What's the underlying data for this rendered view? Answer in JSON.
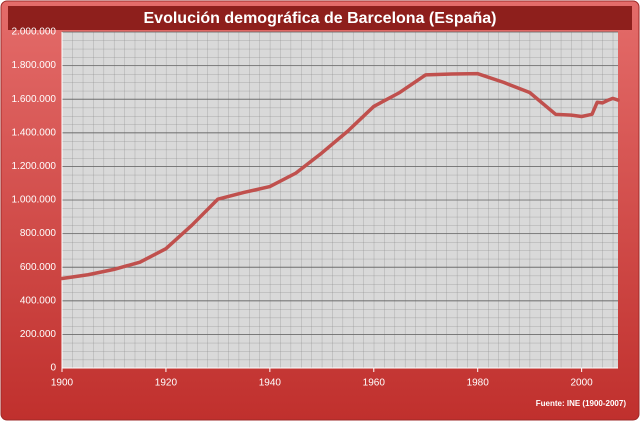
{
  "chart_data": {
    "type": "line",
    "title": "Evolución demográfica de Barcelona (España)",
    "source": "Fuente: INE (1900-2007)",
    "x": [
      1900,
      1905,
      1910,
      1915,
      1920,
      1925,
      1930,
      1935,
      1940,
      1945,
      1950,
      1955,
      1960,
      1965,
      1970,
      1975,
      1980,
      1985,
      1990,
      1995,
      1998,
      2000,
      2002,
      2003,
      2004,
      2005,
      2006,
      2007
    ],
    "series": [
      {
        "color": "#c0504d",
        "values": [
          533000,
          555000,
          587000,
          630000,
          710000,
          850000,
          1005000,
          1045000,
          1080000,
          1160000,
          1280000,
          1410000,
          1557000,
          1640000,
          1745000,
          1750000,
          1752000,
          1700000,
          1640000,
          1510000,
          1505000,
          1497000,
          1510000,
          1582000,
          1578000,
          1593000,
          1605000,
          1595000
        ]
      }
    ],
    "xlim": [
      1900,
      2007
    ],
    "xticks": [
      1900,
      1920,
      1940,
      1960,
      1980,
      2000
    ],
    "ylim": [
      0,
      2000000
    ],
    "yticks": [
      0,
      {
        "value": 200000,
        "label": "200.000"
      },
      {
        "value": 400000,
        "label": "400.000"
      },
      {
        "value": 600000,
        "label": "600.000"
      },
      {
        "value": 800000,
        "label": "800.000"
      },
      {
        "value": 1000000,
        "label": "1.000.000"
      },
      {
        "value": 1200000,
        "label": "1.200.000"
      },
      {
        "value": 1400000,
        "label": "1.400.000"
      },
      {
        "value": 1600000,
        "label": "1.600.000"
      },
      {
        "value": 1800000,
        "label": "1.800.000"
      },
      {
        "value": 2000000,
        "label": "2.000.000"
      }
    ],
    "grid": true
  }
}
